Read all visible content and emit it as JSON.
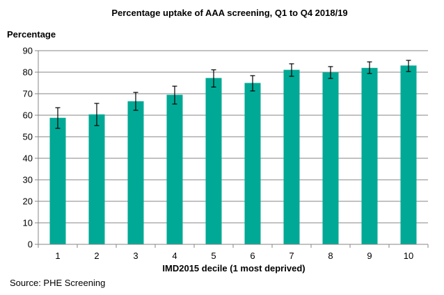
{
  "chart_data": {
    "type": "bar",
    "title": "Percentage uptake of AAA  screening, Q1 to Q4 2018/19",
    "ylabel": "Percentage",
    "xlabel": "IMD2015 decile (1 most deprived)",
    "source": "Source: PHE  Screening",
    "categories": [
      "1",
      "2",
      "3",
      "4",
      "5",
      "6",
      "7",
      "8",
      "9",
      "10"
    ],
    "values": [
      58.8,
      60.4,
      66.5,
      69.5,
      77.3,
      75.0,
      81.1,
      79.9,
      82.0,
      83.1
    ],
    "error_low": [
      53.9,
      55.2,
      62.3,
      65.2,
      73.1,
      71.3,
      78.1,
      77.1,
      79.4,
      80.3
    ],
    "error_high": [
      63.5,
      65.5,
      70.6,
      73.5,
      81.1,
      78.4,
      83.9,
      82.6,
      84.8,
      85.5
    ],
    "ylim": [
      0,
      90
    ],
    "yticks": [
      "0",
      "10",
      "20",
      "30",
      "40",
      "50",
      "60",
      "70",
      "80",
      "90"
    ],
    "grid": true,
    "legend": "none",
    "bar_color": "#00A995"
  }
}
